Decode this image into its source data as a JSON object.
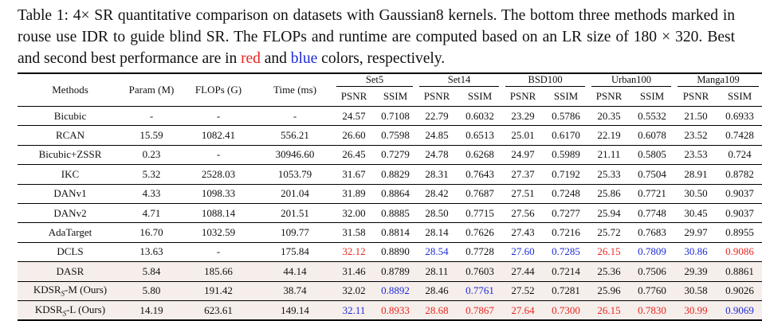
{
  "caption": {
    "part1": "Table 1: 4× SR quantitative comparison on datasets with Gaussian8 kernels.  The bottom three methods marked in rouse use IDR to guide blind SR. The FLOPs and runtime are computed based on an LR size of 180 × 320. Best and second best performance are in ",
    "red_word": "red",
    "and_word": " and ",
    "blue_word": "blue",
    "part2": " colors, respectively."
  },
  "headers": {
    "methods": "Methods",
    "param": "Param (M)",
    "flops": "FLOPs (G)",
    "time": "Time (ms)",
    "datasets": [
      "Set5",
      "Set14",
      "BSD100",
      "Urban100",
      "Manga109"
    ],
    "psnr": "PSNR",
    "ssim": "SSIM"
  },
  "colors": {
    "best": "#e8261f",
    "second": "#1b2bd6",
    "shade": "#f6eeeb"
  },
  "rows": [
    {
      "method": "Bicubic",
      "param": "-",
      "flops": "-",
      "time": "-",
      "vals": [
        "24.57",
        "0.7108",
        "22.79",
        "0.6032",
        "23.29",
        "0.5786",
        "20.35",
        "0.5532",
        "21.50",
        "0.6933"
      ],
      "marks": [
        "",
        "",
        "",
        "",
        "",
        "",
        "",
        "",
        "",
        ""
      ],
      "shaded": false
    },
    {
      "method": "RCAN",
      "param": "15.59",
      "flops": "1082.41",
      "time": "556.21",
      "vals": [
        "26.60",
        "0.7598",
        "24.85",
        "0.6513",
        "25.01",
        "0.6170",
        "22.19",
        "0.6078",
        "23.52",
        "0.7428"
      ],
      "marks": [
        "",
        "",
        "",
        "",
        "",
        "",
        "",
        "",
        "",
        ""
      ],
      "shaded": false
    },
    {
      "method": "Bicubic+ZSSR",
      "param": "0.23",
      "flops": "-",
      "time": "30946.60",
      "vals": [
        "26.45",
        "0.7279",
        "24.78",
        "0.6268",
        "24.97",
        "0.5989",
        "21.11",
        "0.5805",
        "23.53",
        "0.724"
      ],
      "marks": [
        "",
        "",
        "",
        "",
        "",
        "",
        "",
        "",
        "",
        ""
      ],
      "shaded": false
    },
    {
      "method": "IKC",
      "param": "5.32",
      "flops": "2528.03",
      "time": "1053.79",
      "vals": [
        "31.67",
        "0.8829",
        "28.31",
        "0.7643",
        "27.37",
        "0.7192",
        "25.33",
        "0.7504",
        "28.91",
        "0.8782"
      ],
      "marks": [
        "",
        "",
        "",
        "",
        "",
        "",
        "",
        "",
        "",
        ""
      ],
      "shaded": false
    },
    {
      "method": "DANv1",
      "param": "4.33",
      "flops": "1098.33",
      "time": "201.04",
      "vals": [
        "31.89",
        "0.8864",
        "28.42",
        "0.7687",
        "27.51",
        "0.7248",
        "25.86",
        "0.7721",
        "30.50",
        "0.9037"
      ],
      "marks": [
        "",
        "",
        "",
        "",
        "",
        "",
        "",
        "",
        "",
        ""
      ],
      "shaded": false
    },
    {
      "method": "DANv2",
      "param": "4.71",
      "flops": "1088.14",
      "time": "201.51",
      "vals": [
        "32.00",
        "0.8885",
        "28.50",
        "0.7715",
        "27.56",
        "0.7277",
        "25.94",
        "0.7748",
        "30.45",
        "0.9037"
      ],
      "marks": [
        "",
        "",
        "",
        "",
        "",
        "",
        "",
        "",
        "",
        ""
      ],
      "shaded": false
    },
    {
      "method": "AdaTarget",
      "param": "16.70",
      "flops": "1032.59",
      "time": "109.77",
      "vals": [
        "31.58",
        "0.8814",
        "28.14",
        "0.7626",
        "27.43",
        "0.7216",
        "25.72",
        "0.7683",
        "29.97",
        "0.8955"
      ],
      "marks": [
        "",
        "",
        "",
        "",
        "",
        "",
        "",
        "",
        "",
        ""
      ],
      "shaded": false
    },
    {
      "method": "DCLS",
      "param": "13.63",
      "flops": "-",
      "time": "175.84",
      "vals": [
        "32.12",
        "0.8890",
        "28.54",
        "0.7728",
        "27.60",
        "0.7285",
        "26.15",
        "0.7809",
        "30.86",
        "0.9086"
      ],
      "marks": [
        "red",
        "",
        "blue",
        "",
        "blue",
        "blue",
        "red",
        "blue",
        "blue",
        "red"
      ],
      "shaded": false
    },
    {
      "method": "DASR",
      "param": "5.84",
      "flops": "185.66",
      "time": "44.14",
      "vals": [
        "31.46",
        "0.8789",
        "28.11",
        "0.7603",
        "27.44",
        "0.7214",
        "25.36",
        "0.7506",
        "29.39",
        "0.8861"
      ],
      "marks": [
        "",
        "",
        "",
        "",
        "",
        "",
        "",
        "",
        "",
        ""
      ],
      "shaded": true
    },
    {
      "method": "KDSR",
      "method_sub": "S",
      "method_suffix": "-M (Ours)",
      "param": "5.80",
      "flops": "191.42",
      "time": "38.74",
      "vals": [
        "32.02",
        "0.8892",
        "28.46",
        "0.7761",
        "27.52",
        "0.7281",
        "25.96",
        "0.7760",
        "30.58",
        "0.9026"
      ],
      "marks": [
        "",
        "blue",
        "",
        "blue",
        "",
        "",
        "",
        "",
        "",
        ""
      ],
      "shaded": true
    },
    {
      "method": "KDSR",
      "method_sub": "S",
      "method_suffix": "-L (Ours)",
      "param": "14.19",
      "flops": "623.61",
      "time": "149.14",
      "vals": [
        "32.11",
        "0.8933",
        "28.68",
        "0.7867",
        "27.64",
        "0.7300",
        "26.15",
        "0.7830",
        "30.99",
        "0.9069"
      ],
      "marks": [
        "blue",
        "red",
        "red",
        "red",
        "red",
        "red",
        "red",
        "red",
        "red",
        "blue"
      ],
      "shaded": true
    }
  ]
}
